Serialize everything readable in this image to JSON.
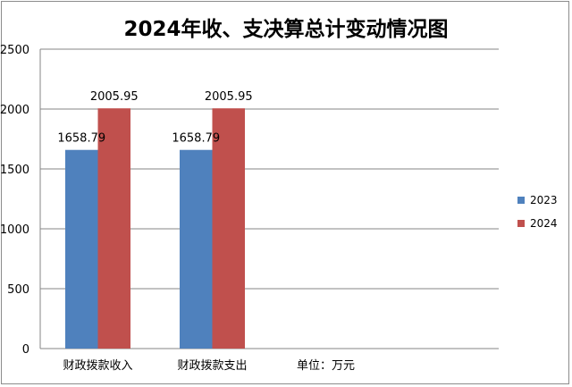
{
  "chart_data": {
    "type": "bar",
    "title": "2024年收、支决算总计变动情况图",
    "categories": [
      "财政拨款收入",
      "财政拨款支出"
    ],
    "series": [
      {
        "name": "2023",
        "values": [
          1658.79,
          1658.79
        ],
        "color": "#4f81bd"
      },
      {
        "name": "2024",
        "values": [
          2005.95,
          2005.95
        ],
        "color": "#c0504d"
      }
    ],
    "ylim": [
      0,
      2500
    ],
    "yticks": [
      0,
      500,
      1000,
      1500,
      2000,
      2500
    ],
    "grid": true,
    "legend_position": "right",
    "unit_note": "单位：万元"
  }
}
